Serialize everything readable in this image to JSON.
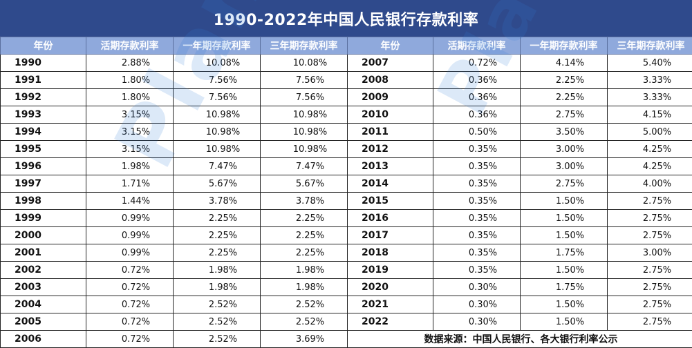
{
  "title": "1990-2022年中国人民银行存款利率",
  "headers": {
    "year": "年份",
    "current": "活期存款利率",
    "one_year": "一年期存款利率",
    "three_year": "三年期存款利率"
  },
  "left_rows": [
    {
      "year": "1990",
      "current": "2.88%",
      "one_year": "10.08%",
      "three_year": "10.08%"
    },
    {
      "year": "1991",
      "current": "1.80%",
      "one_year": "7.56%",
      "three_year": "7.56%"
    },
    {
      "year": "1992",
      "current": "1.80%",
      "one_year": "7.56%",
      "three_year": "7.56%"
    },
    {
      "year": "1993",
      "current": "3.15%",
      "one_year": "10.98%",
      "three_year": "10.98%"
    },
    {
      "year": "1994",
      "current": "3.15%",
      "one_year": "10.98%",
      "three_year": "10.98%"
    },
    {
      "year": "1995",
      "current": "3.15%",
      "one_year": "10.98%",
      "three_year": "10.98%"
    },
    {
      "year": "1996",
      "current": "1.98%",
      "one_year": "7.47%",
      "three_year": "7.47%"
    },
    {
      "year": "1997",
      "current": "1.71%",
      "one_year": "5.67%",
      "three_year": "5.67%"
    },
    {
      "year": "1998",
      "current": "1.44%",
      "one_year": "3.78%",
      "three_year": "3.78%"
    },
    {
      "year": "1999",
      "current": "0.99%",
      "one_year": "2.25%",
      "three_year": "2.25%"
    },
    {
      "year": "2000",
      "current": "0.99%",
      "one_year": "2.25%",
      "three_year": "2.25%"
    },
    {
      "year": "2001",
      "current": "0.99%",
      "one_year": "2.25%",
      "three_year": "2.25%"
    },
    {
      "year": "2002",
      "current": "0.72%",
      "one_year": "1.98%",
      "three_year": "1.98%"
    },
    {
      "year": "2003",
      "current": "0.72%",
      "one_year": "1.98%",
      "three_year": "1.98%"
    },
    {
      "year": "2004",
      "current": "0.72%",
      "one_year": "2.52%",
      "three_year": "2.52%"
    },
    {
      "year": "2005",
      "current": "0.72%",
      "one_year": "2.52%",
      "three_year": "2.52%"
    },
    {
      "year": "2006",
      "current": "0.72%",
      "one_year": "2.52%",
      "three_year": "3.69%"
    }
  ],
  "right_rows": [
    {
      "year": "2007",
      "current": "0.72%",
      "one_year": "4.14%",
      "three_year": "5.40%"
    },
    {
      "year": "2008",
      "current": "0.36%",
      "one_year": "2.25%",
      "three_year": "3.33%"
    },
    {
      "year": "2009",
      "current": "0.36%",
      "one_year": "2.25%",
      "three_year": "3.33%"
    },
    {
      "year": "2010",
      "current": "0.36%",
      "one_year": "2.75%",
      "three_year": "4.15%"
    },
    {
      "year": "2011",
      "current": "0.50%",
      "one_year": "3.50%",
      "three_year": "5.00%"
    },
    {
      "year": "2012",
      "current": "0.35%",
      "one_year": "3.00%",
      "three_year": "4.25%"
    },
    {
      "year": "2013",
      "current": "0.35%",
      "one_year": "3.00%",
      "three_year": "4.25%"
    },
    {
      "year": "2014",
      "current": "0.35%",
      "one_year": "2.75%",
      "three_year": "4.00%"
    },
    {
      "year": "2015",
      "current": "0.35%",
      "one_year": "1.50%",
      "three_year": "2.75%"
    },
    {
      "year": "2016",
      "current": "0.35%",
      "one_year": "1.50%",
      "three_year": "2.75%"
    },
    {
      "year": "2017",
      "current": "0.35%",
      "one_year": "1.50%",
      "three_year": "2.75%"
    },
    {
      "year": "2018",
      "current": "0.35%",
      "one_year": "1.75%",
      "three_year": "3.00%"
    },
    {
      "year": "2019",
      "current": "0.35%",
      "one_year": "1.50%",
      "three_year": "2.75%"
    },
    {
      "year": "2020",
      "current": "0.30%",
      "one_year": "1.75%",
      "three_year": "2.75%"
    },
    {
      "year": "2021",
      "current": "0.30%",
      "one_year": "1.50%",
      "three_year": "2.75%"
    },
    {
      "year": "2022",
      "current": "0.30%",
      "one_year": "1.50%",
      "three_year": "2.75%"
    }
  ],
  "source_note": "数据来源：中国人民银行、各大银行利率公示",
  "watermark": "Plan",
  "colors": {
    "title_bg": "#2f4a8c",
    "header_bg": "#8fa9dc",
    "watermark": "#2f7bd6"
  }
}
